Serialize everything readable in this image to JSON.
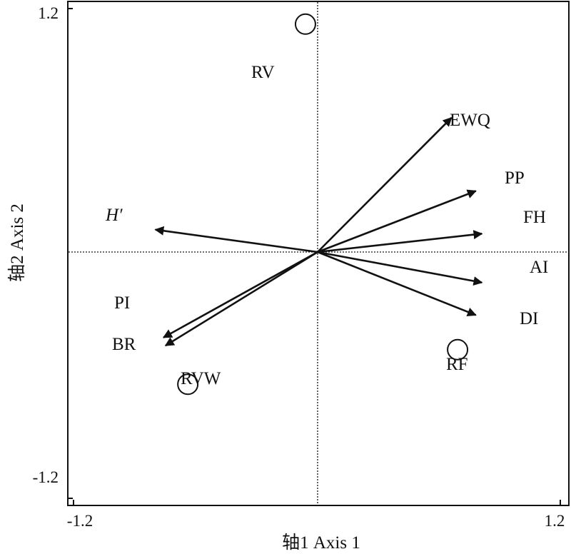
{
  "chart_data": {
    "type": "scatter",
    "subtype": "ordination-biplot",
    "xlabel": "轴1 Axis 1",
    "ylabel": "轴2 Axis 2",
    "xlim": [
      -1.2,
      1.2
    ],
    "ylim": [
      -1.2,
      1.2
    ],
    "x_ticks": [
      "-1.2",
      "1.2"
    ],
    "y_ticks": [
      "1.2",
      "-1.2"
    ],
    "reference_lines": "dotted lines at x=0 and y=0",
    "grid": false,
    "legend": "none",
    "vectors": [
      {
        "label": "EWQ",
        "x": 0.66,
        "y": 0.66
      },
      {
        "label": "PP",
        "x": 0.78,
        "y": 0.3
      },
      {
        "label": "FH",
        "x": 0.81,
        "y": 0.09
      },
      {
        "label": "AI",
        "x": 0.81,
        "y": -0.15
      },
      {
        "label": "DI",
        "x": 0.78,
        "y": -0.31
      },
      {
        "label": "H′",
        "x": -0.8,
        "y": 0.11,
        "italic": true
      },
      {
        "label": "PI",
        "x": -0.76,
        "y": -0.42
      },
      {
        "label": "BR",
        "x": -0.75,
        "y": -0.46
      }
    ],
    "sites": [
      {
        "label": "RV",
        "x": -0.06,
        "y": 1.12
      },
      {
        "label": "RF",
        "x": 0.69,
        "y": -0.48
      },
      {
        "label": "RVW",
        "x": -0.64,
        "y": -0.65
      }
    ],
    "colors": {
      "ink": "#111111",
      "background": "#ffffff"
    }
  }
}
